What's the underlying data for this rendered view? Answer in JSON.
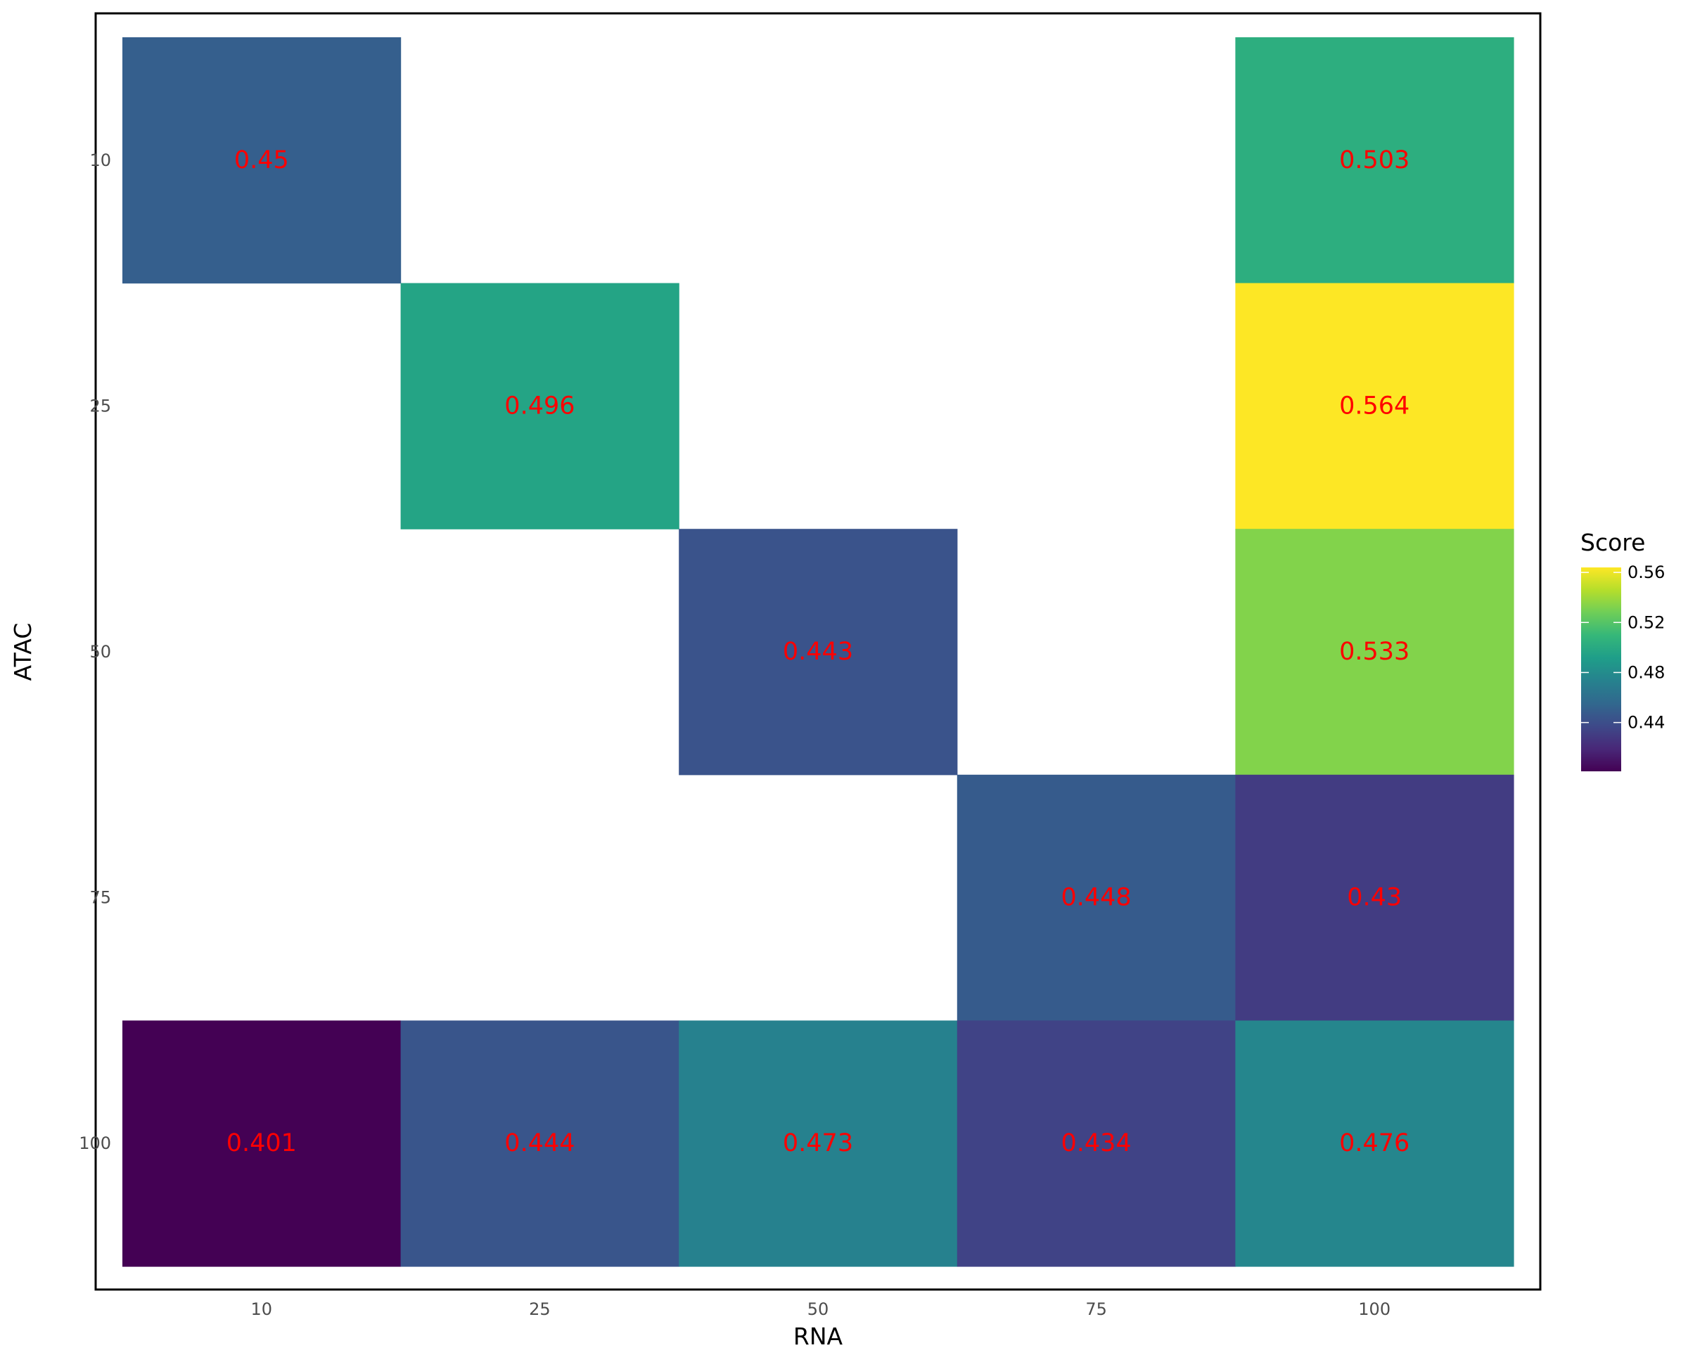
{
  "chart_data": {
    "type": "heatmap",
    "xlabel": "RNA",
    "ylabel": "ATAC",
    "x_categories": [
      "10",
      "25",
      "50",
      "75",
      "100"
    ],
    "y_categories": [
      "10",
      "25",
      "50",
      "75",
      "100"
    ],
    "cells": [
      {
        "x": "10",
        "y": "10",
        "value": 0.45,
        "label": "0.45"
      },
      {
        "x": "100",
        "y": "10",
        "value": 0.503,
        "label": "0.503"
      },
      {
        "x": "25",
        "y": "25",
        "value": 0.496,
        "label": "0.496"
      },
      {
        "x": "100",
        "y": "25",
        "value": 0.564,
        "label": "0.564"
      },
      {
        "x": "50",
        "y": "50",
        "value": 0.443,
        "label": "0.443"
      },
      {
        "x": "100",
        "y": "50",
        "value": 0.533,
        "label": "0.533"
      },
      {
        "x": "75",
        "y": "75",
        "value": 0.448,
        "label": "0.448"
      },
      {
        "x": "100",
        "y": "75",
        "value": 0.43,
        "label": "0.43"
      },
      {
        "x": "10",
        "y": "100",
        "value": 0.401,
        "label": "0.401"
      },
      {
        "x": "25",
        "y": "100",
        "value": 0.444,
        "label": "0.444"
      },
      {
        "x": "50",
        "y": "100",
        "value": 0.473,
        "label": "0.473"
      },
      {
        "x": "75",
        "y": "100",
        "value": 0.434,
        "label": "0.434"
      },
      {
        "x": "100",
        "y": "100",
        "value": 0.476,
        "label": "0.476"
      }
    ],
    "legend": {
      "title": "Score",
      "position": "right",
      "ticks": [
        0.44,
        0.48,
        0.52,
        0.56
      ],
      "tick_labels": [
        "0.44",
        "0.48",
        "0.52",
        "0.56"
      ],
      "range": [
        0.401,
        0.564
      ],
      "colormap": "viridis"
    },
    "colors": {
      "cell_label": "#ff0000",
      "panel_border": "#000000"
    },
    "grid": false
  }
}
